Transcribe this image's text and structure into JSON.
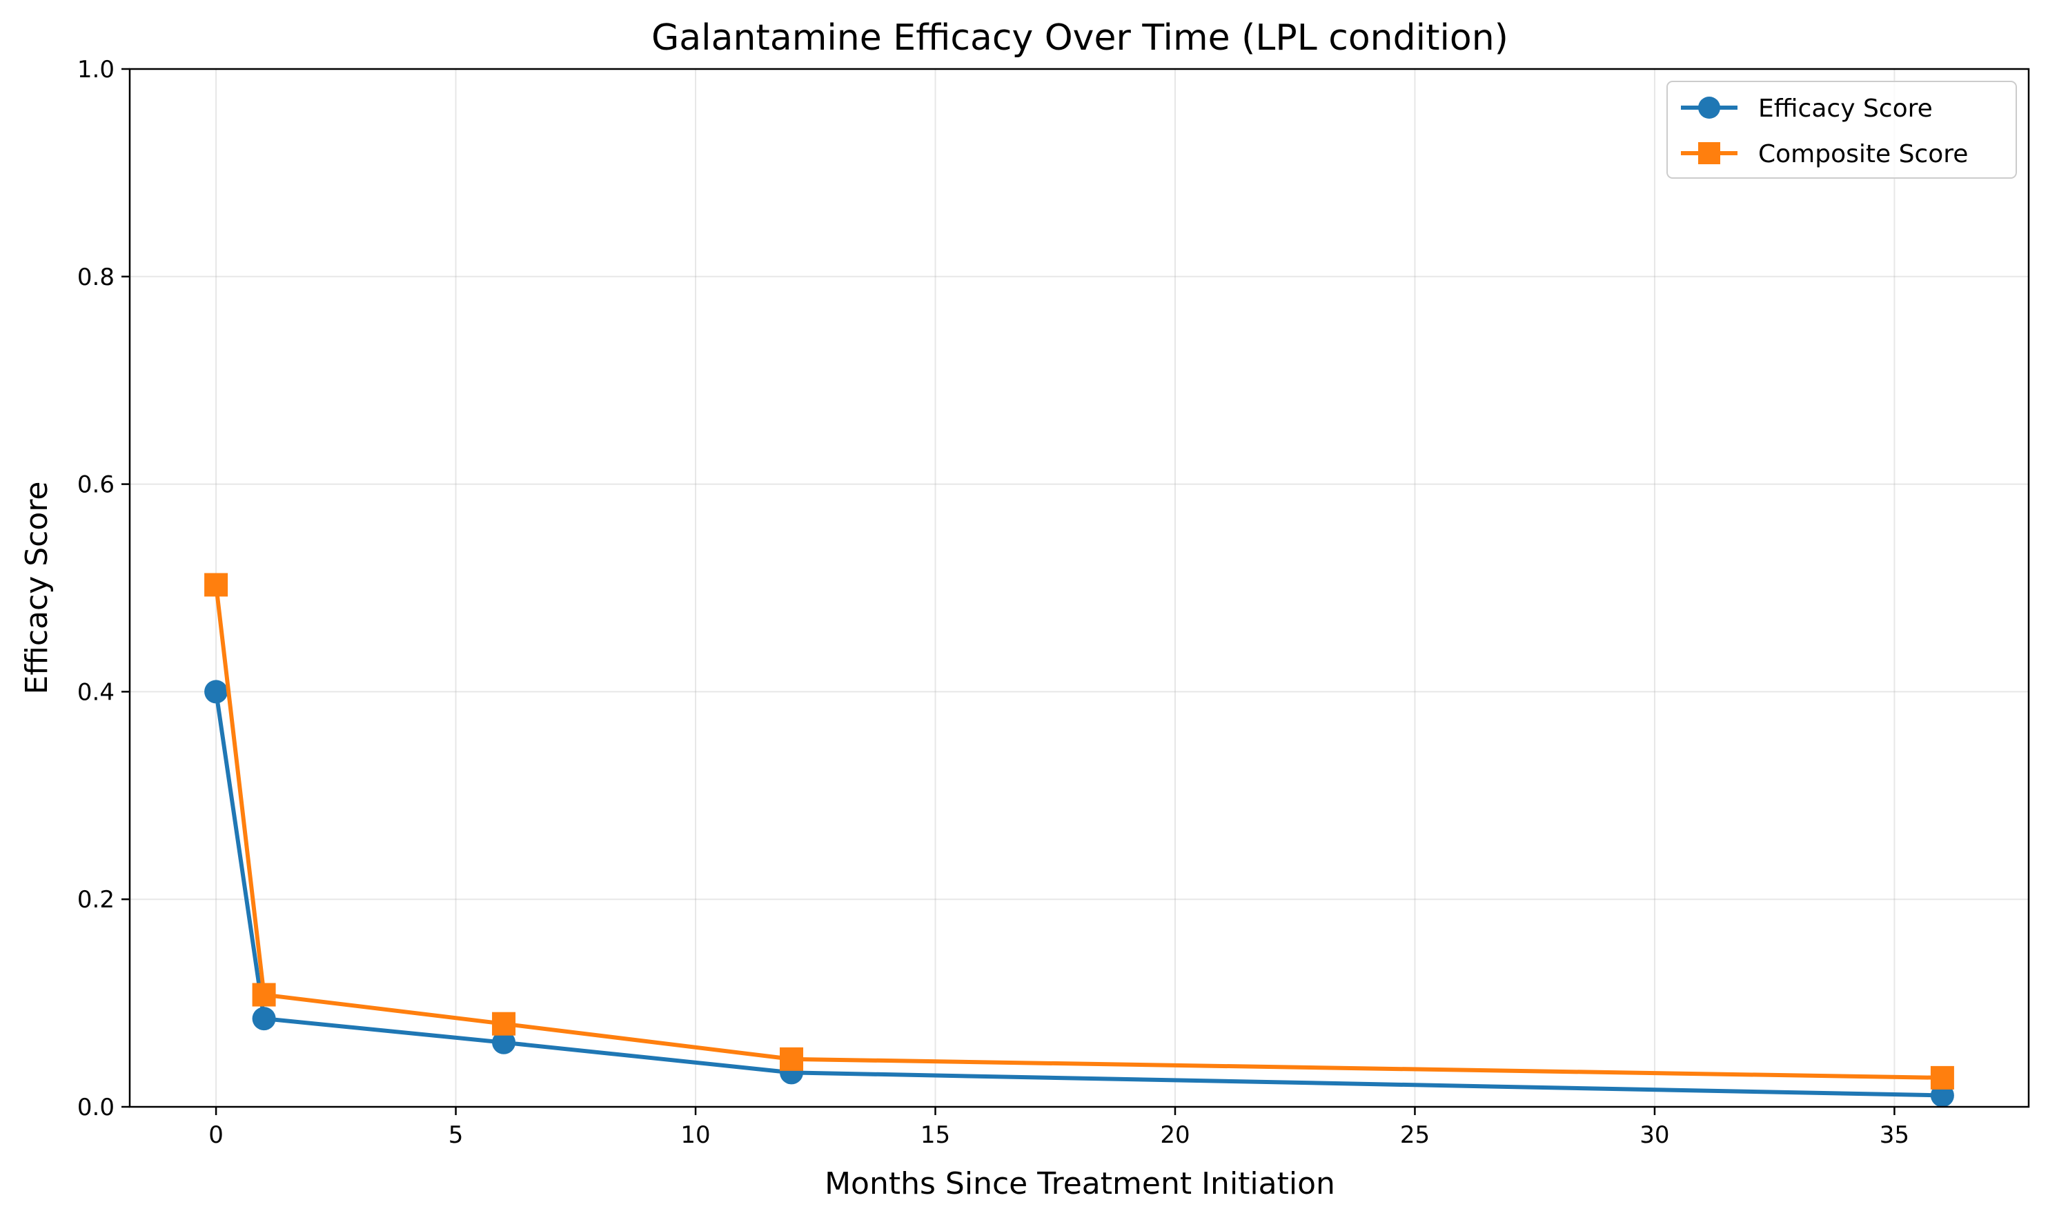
{
  "chart_data": {
    "type": "line",
    "title": "Galantamine Efficacy Over Time (LPL condition)",
    "xlabel": "Months Since Treatment Initiation",
    "ylabel": "Efficacy Score",
    "xlim": [
      -1.8,
      37.8
    ],
    "ylim": [
      0,
      1.0
    ],
    "xticks": [
      0,
      5,
      10,
      15,
      20,
      25,
      30,
      35
    ],
    "xtick_labels": [
      "0",
      "5",
      "10",
      "15",
      "20",
      "25",
      "30",
      "35"
    ],
    "yticks": [
      0,
      0.2,
      0.4,
      0.6,
      0.8,
      1.0
    ],
    "ytick_labels": [
      "0.0",
      "0.2",
      "0.4",
      "0.6",
      "0.8",
      "1.0"
    ],
    "grid": true,
    "legend_position": "top-right",
    "x": [
      0,
      1,
      6,
      12,
      36
    ],
    "series": [
      {
        "name": "Efficacy Score",
        "color": "#1f77b4",
        "marker": "circle",
        "values": [
          0.4,
          0.085,
          0.062,
          0.033,
          0.011
        ]
      },
      {
        "name": "Composite Score",
        "color": "#ff7f0e",
        "marker": "square",
        "values": [
          0.503,
          0.108,
          0.08,
          0.046,
          0.028
        ]
      }
    ]
  }
}
